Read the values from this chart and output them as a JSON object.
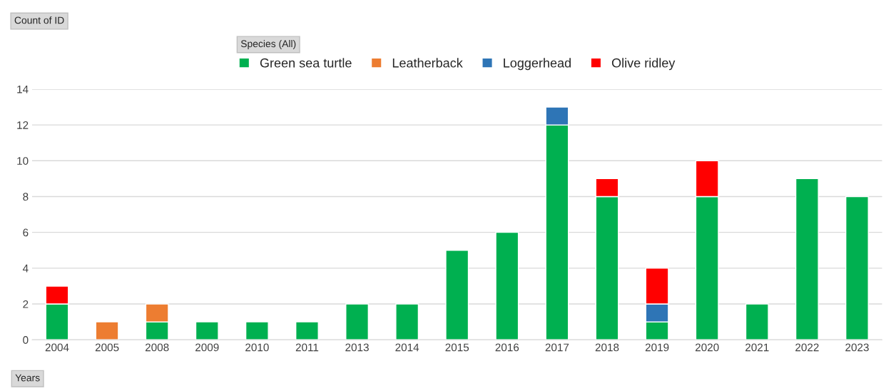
{
  "chart_data": {
    "type": "bar",
    "stacked": true,
    "annotations": [
      "Count of ID"
    ],
    "xlabel": "Years",
    "legend_title": "Species (All)",
    "categories": [
      "2004",
      "2005",
      "2008",
      "2009",
      "2010",
      "2011",
      "2013",
      "2014",
      "2015",
      "2016",
      "2017",
      "2018",
      "2019",
      "2020",
      "2021",
      "2022",
      "2023"
    ],
    "series": [
      {
        "name": "Green sea turtle",
        "color": "#00b050",
        "values": [
          2,
          null,
          1,
          1,
          1,
          1,
          2,
          2,
          5,
          6,
          12,
          8,
          1,
          8,
          2,
          9,
          8
        ]
      },
      {
        "name": "Leatherback",
        "color": "#ed7d31",
        "values": [
          null,
          1,
          1,
          null,
          null,
          null,
          null,
          null,
          null,
          null,
          null,
          null,
          null,
          null,
          null,
          null,
          null
        ]
      },
      {
        "name": "Loggerhead",
        "color": "#2e75b6",
        "values": [
          null,
          null,
          null,
          null,
          null,
          null,
          null,
          null,
          null,
          null,
          1,
          null,
          1,
          null,
          null,
          null,
          null
        ]
      },
      {
        "name": "Olive ridley",
        "color": "#ff0000",
        "values": [
          1,
          null,
          null,
          null,
          null,
          null,
          null,
          null,
          null,
          null,
          null,
          1,
          2,
          2,
          null,
          null,
          null
        ]
      }
    ],
    "ylim": [
      0,
      14
    ],
    "yticks": [
      0,
      2,
      4,
      6,
      8,
      10,
      12,
      14
    ],
    "grid": "y",
    "legend": "top"
  }
}
